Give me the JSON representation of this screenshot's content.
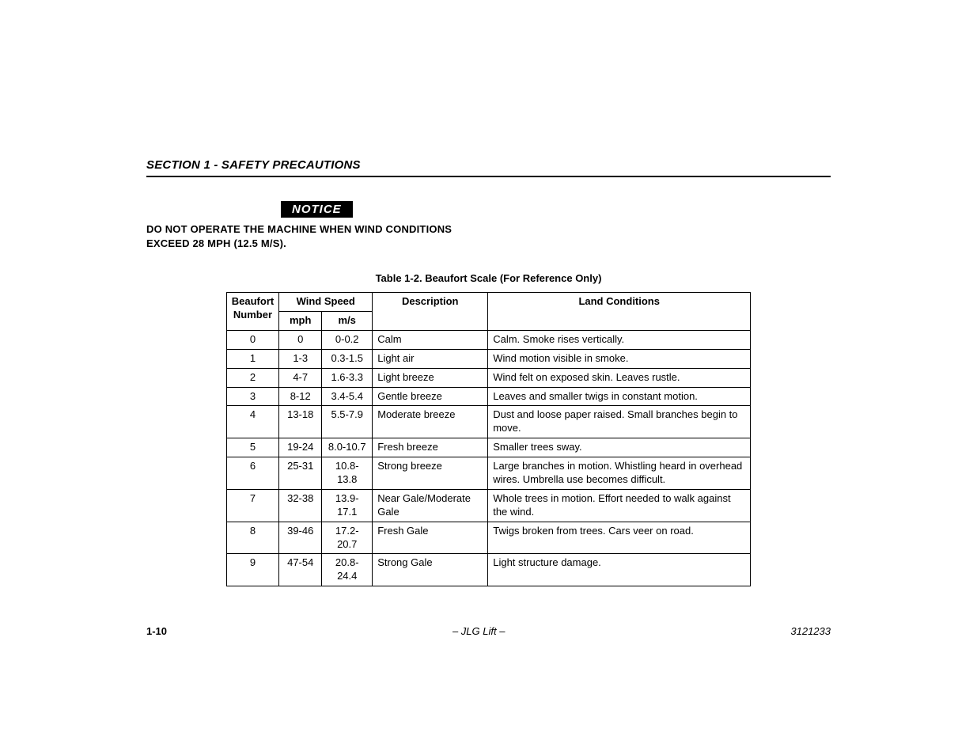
{
  "section_header": "SECTION 1 - SAFETY PRECAUTIONS",
  "notice": {
    "label": "NOTICE",
    "text": "DO NOT OPERATE THE MACHINE WHEN WIND CONDITIONS EXCEED 28 MPH (12.5 M/S)."
  },
  "table": {
    "caption": "Table 1-2. Beaufort Scale (For Reference Only)",
    "headers": {
      "beaufort": "Beaufort Number",
      "windspeed": "Wind Speed",
      "mph": "mph",
      "ms": "m/s",
      "description": "Description",
      "land": "Land Conditions"
    },
    "rows": [
      {
        "num": "0",
        "mph": "0",
        "ms": "0-0.2",
        "desc": "Calm",
        "land": "Calm. Smoke rises vertically."
      },
      {
        "num": "1",
        "mph": "1-3",
        "ms": "0.3-1.5",
        "desc": "Light air",
        "land": "Wind motion visible in smoke."
      },
      {
        "num": "2",
        "mph": "4-7",
        "ms": "1.6-3.3",
        "desc": "Light breeze",
        "land": "Wind felt on exposed skin. Leaves rustle."
      },
      {
        "num": "3",
        "mph": "8-12",
        "ms": "3.4-5.4",
        "desc": "Gentle breeze",
        "land": "Leaves and smaller twigs in constant motion."
      },
      {
        "num": "4",
        "mph": "13-18",
        "ms": "5.5-7.9",
        "desc": "Moderate breeze",
        "land": "Dust and loose paper raised. Small branches begin to move."
      },
      {
        "num": "5",
        "mph": "19-24",
        "ms": "8.0-10.7",
        "desc": "Fresh breeze",
        "land": "Smaller trees sway."
      },
      {
        "num": "6",
        "mph": "25-31",
        "ms": "10.8-13.8",
        "desc": "Strong breeze",
        "land": "Large branches in motion. Whistling heard in overhead wires. Umbrella use becomes difficult."
      },
      {
        "num": "7",
        "mph": "32-38",
        "ms": "13.9-17.1",
        "desc": "Near Gale/Moderate Gale",
        "land": "Whole trees in motion. Effort needed to walk against the wind."
      },
      {
        "num": "8",
        "mph": "39-46",
        "ms": "17.2-20.7",
        "desc": "Fresh Gale",
        "land": "Twigs broken from trees. Cars veer on road."
      },
      {
        "num": "9",
        "mph": "47-54",
        "ms": "20.8-24.4",
        "desc": "Strong Gale",
        "land": "Light structure damage."
      }
    ]
  },
  "footer": {
    "page": "1-10",
    "center": "– JLG Lift –",
    "docnum": "3121233"
  }
}
